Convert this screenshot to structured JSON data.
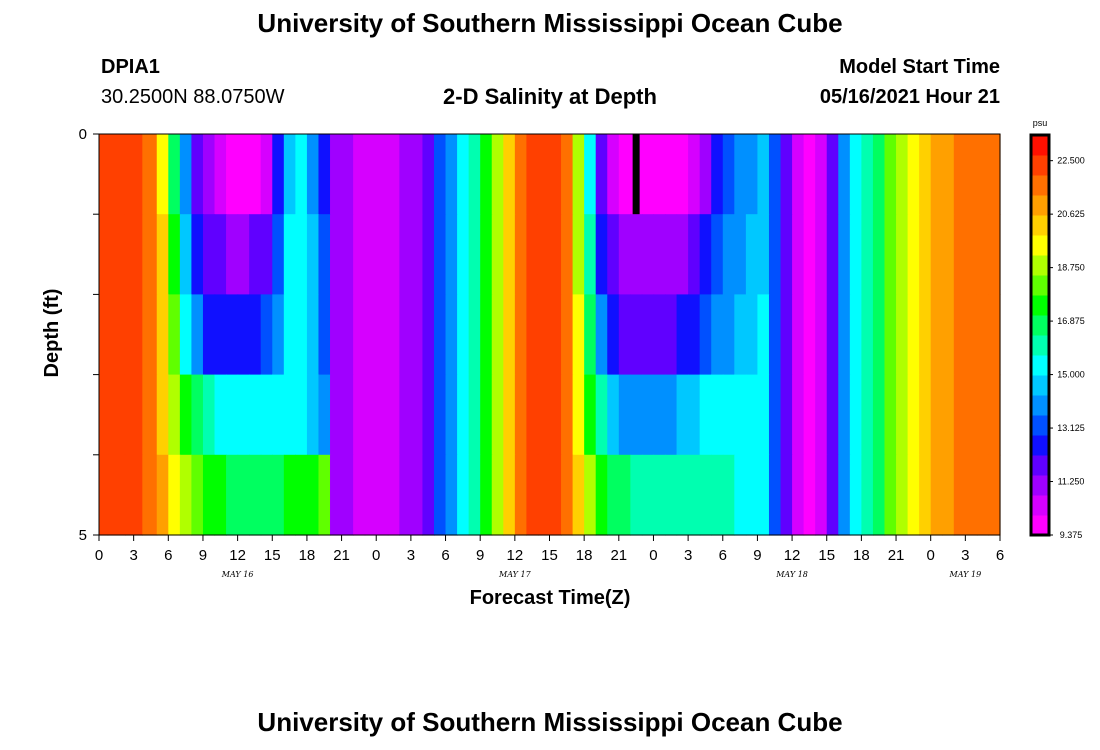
{
  "page": {
    "title": "University of Southern Mississippi Ocean Cube",
    "footer_title": "University of Southern Mississippi Ocean Cube"
  },
  "header": {
    "station_id": "DPIA1",
    "coordinates": "30.2500N  88.0750W",
    "chart_title": "2-D Salinity at Depth",
    "model_start_label": "Model Start Time",
    "model_start_value": "05/16/2021 Hour 21"
  },
  "colors": {
    "colormap": [
      "#ff00ff",
      "#d600ff",
      "#a000ff",
      "#6000ff",
      "#1010ff",
      "#0050ff",
      "#0090ff",
      "#00c8ff",
      "#00ffff",
      "#00ffb0",
      "#00ff60",
      "#00ff00",
      "#60ff00",
      "#b0ff00",
      "#ffff00",
      "#ffd000",
      "#ffa000",
      "#ff7000",
      "#ff4000",
      "#ff1000"
    ],
    "now_marker": "#000000"
  },
  "chart_data": {
    "type": "heatmap",
    "title": "2-D Salinity at Depth",
    "xlabel": "Forecast Time(Z)",
    "ylabel": "Depth (ft)",
    "x_tick_labels": [
      "0",
      "3",
      "6",
      "9",
      "12",
      "15",
      "18",
      "21",
      "0",
      "3",
      "6",
      "9",
      "12",
      "15",
      "18",
      "21",
      "0",
      "3",
      "6",
      "9",
      "12",
      "15",
      "18",
      "21",
      "0",
      "3",
      "6"
    ],
    "x_hours": [
      0,
      3,
      6,
      9,
      12,
      15,
      18,
      21,
      24,
      27,
      30,
      33,
      36,
      39,
      42,
      45,
      48,
      51,
      54,
      57,
      60,
      63,
      66,
      69,
      72,
      75,
      78
    ],
    "date_labels": [
      {
        "label": "MAY 16",
        "hour": 12
      },
      {
        "label": "MAY 17",
        "hour": 36
      },
      {
        "label": "MAY 18",
        "hour": 60
      },
      {
        "label": "MAY 19",
        "hour": 75
      }
    ],
    "xlim": [
      0,
      78
    ],
    "ylim": [
      0,
      5
    ],
    "y_tick_labels": [
      "0",
      "5"
    ],
    "y_ticks": [
      0,
      1,
      2,
      3,
      4,
      5
    ],
    "depth_levels": [
      0,
      1,
      2,
      3,
      4
    ],
    "column_hours": [
      0,
      1.5,
      3,
      4.5,
      5.5,
      6.5,
      7.5,
      8.5,
      9.5,
      10.5,
      11.5,
      12.5,
      13.5,
      14.5,
      15.5,
      16.5,
      17.5,
      18.5,
      19.5,
      20.5,
      21.5,
      22.5,
      23.5,
      24.5,
      25.5,
      26.5,
      27.5,
      28.5,
      29.5,
      30.5,
      31.5,
      32.5,
      33.5,
      34.5,
      35.5,
      36.5,
      37.5,
      38.5,
      39.5,
      40.5,
      41.5,
      42.5,
      43.5,
      44.5,
      45.5,
      46.5,
      47.5,
      48.5,
      49.5,
      50.5,
      51.5,
      52.5,
      53.5,
      54.5,
      55.5,
      56.5,
      57.5,
      58.5,
      59.5,
      60.5,
      61.5,
      62.5,
      63.5,
      64.5,
      65.5,
      66.5,
      67.5,
      68.5,
      69.5,
      70.5,
      71.5,
      72.5,
      73.5,
      74.5,
      75.5,
      76.5,
      77.5
    ],
    "salinity_psu": [
      [
        22.5,
        22.3,
        22.0,
        21.5,
        19.5,
        16.5,
        14.0,
        12.0,
        11.0,
        10.2,
        9.6,
        9.4,
        9.6,
        10.5,
        12.5,
        14.5,
        15.0,
        14.0,
        12.5,
        11.3,
        10.8,
        10.6,
        10.5,
        10.5,
        10.6,
        10.8,
        11.2,
        12.0,
        13.0,
        14.0,
        15.0,
        16.0,
        17.5,
        19.0,
        20.5,
        21.5,
        22.3,
        22.5,
        22.3,
        21.5,
        18.5,
        15.5,
        11.5,
        10.2,
        9.6,
        9.4,
        9.4,
        9.4,
        9.5,
        9.8,
        10.5,
        11.3,
        12.2,
        13.0,
        13.6,
        14.1,
        14.5,
        13.0,
        11.5,
        10.2,
        9.8,
        10.2,
        11.5,
        13.8,
        15.5,
        16.3,
        17.0,
        17.8,
        18.5,
        19.3,
        20.0,
        20.6,
        21.0,
        21.3,
        21.5,
        21.6,
        21.7
      ],
      [
        22.5,
        22.3,
        22.0,
        21.5,
        20.0,
        17.5,
        14.5,
        12.5,
        12.0,
        11.6,
        11.4,
        11.4,
        11.5,
        12.0,
        13.5,
        15.0,
        15.3,
        14.5,
        13.0,
        11.3,
        10.8,
        10.6,
        10.5,
        10.5,
        10.6,
        10.8,
        11.2,
        12.0,
        13.0,
        14.0,
        15.0,
        16.0,
        17.5,
        19.0,
        20.5,
        21.5,
        22.3,
        22.5,
        22.3,
        21.5,
        19.0,
        16.0,
        12.5,
        11.5,
        11.0,
        10.8,
        10.8,
        10.9,
        11.0,
        11.3,
        11.8,
        12.4,
        13.0,
        13.6,
        14.1,
        14.5,
        14.8,
        13.0,
        11.5,
        10.2,
        9.8,
        10.2,
        11.5,
        13.8,
        15.5,
        16.3,
        17.0,
        17.8,
        18.5,
        19.3,
        20.0,
        20.6,
        21.0,
        21.3,
        21.5,
        21.6,
        21.7
      ],
      [
        22.5,
        22.3,
        22.0,
        21.5,
        20.2,
        18.0,
        15.5,
        13.8,
        12.8,
        12.5,
        12.3,
        12.3,
        12.5,
        13.0,
        14.0,
        15.0,
        15.3,
        14.7,
        13.5,
        11.3,
        10.8,
        10.6,
        10.5,
        10.5,
        10.6,
        10.8,
        11.2,
        12.0,
        13.0,
        14.0,
        15.0,
        16.0,
        17.5,
        19.0,
        20.5,
        21.5,
        22.3,
        22.5,
        22.3,
        21.5,
        19.3,
        16.5,
        13.8,
        12.2,
        11.8,
        11.6,
        11.6,
        11.7,
        11.9,
        12.2,
        12.6,
        13.1,
        13.6,
        14.1,
        14.5,
        14.8,
        15.0,
        13.0,
        11.5,
        10.2,
        9.8,
        10.2,
        11.5,
        13.8,
        15.5,
        16.3,
        17.0,
        17.8,
        18.5,
        19.3,
        20.0,
        20.6,
        21.0,
        21.3,
        21.5,
        21.6,
        21.7
      ],
      [
        22.5,
        22.3,
        22.0,
        21.5,
        20.5,
        18.8,
        17.5,
        16.5,
        15.8,
        15.4,
        15.2,
        15.2,
        15.3,
        15.4,
        15.5,
        15.5,
        15.3,
        14.8,
        13.8,
        11.3,
        10.8,
        10.6,
        10.5,
        10.5,
        10.6,
        10.8,
        11.2,
        12.0,
        13.0,
        14.0,
        15.0,
        16.0,
        17.5,
        19.0,
        20.5,
        21.5,
        22.3,
        22.5,
        22.3,
        21.5,
        19.5,
        17.5,
        15.8,
        14.5,
        14.0,
        13.8,
        13.8,
        13.9,
        14.2,
        14.5,
        14.8,
        15.0,
        15.2,
        15.3,
        15.3,
        15.3,
        15.3,
        13.0,
        11.5,
        10.2,
        9.8,
        10.2,
        11.5,
        13.8,
        15.5,
        16.3,
        17.0,
        17.8,
        18.5,
        19.3,
        20.0,
        20.6,
        21.0,
        21.3,
        21.5,
        21.6,
        21.7
      ],
      [
        22.5,
        22.3,
        22.0,
        21.5,
        20.8,
        19.8,
        18.8,
        18.0,
        17.5,
        17.2,
        17.0,
        16.9,
        16.9,
        17.0,
        17.0,
        17.2,
        17.3,
        17.5,
        18.0,
        11.3,
        10.8,
        10.6,
        10.5,
        10.5,
        10.6,
        10.8,
        11.2,
        12.0,
        13.0,
        14.0,
        15.0,
        16.0,
        17.5,
        19.0,
        20.5,
        21.5,
        22.3,
        22.5,
        22.3,
        21.5,
        20.2,
        19.0,
        17.6,
        16.8,
        16.4,
        16.2,
        16.1,
        16.1,
        16.1,
        16.1,
        16.0,
        15.9,
        15.8,
        15.7,
        15.6,
        15.6,
        15.6,
        13.0,
        11.5,
        10.2,
        9.8,
        10.2,
        11.5,
        13.8,
        15.5,
        16.3,
        17.0,
        17.8,
        18.5,
        19.3,
        20.0,
        20.6,
        21.0,
        21.3,
        21.5,
        21.6,
        21.7
      ]
    ],
    "colorbar": {
      "unit": "psu",
      "min": 9.375,
      "max": 23.4,
      "tick_labels": [
        "22.500",
        "20.625",
        "18.750",
        "16.875",
        "15.000",
        "13.125",
        "11.250",
        "9.375"
      ],
      "tick_values": [
        22.5,
        20.625,
        18.75,
        16.875,
        15.0,
        13.125,
        11.25,
        9.375
      ]
    },
    "now_marker_hour": 46.5,
    "now_marker_depth": [
      0,
      1
    ]
  }
}
